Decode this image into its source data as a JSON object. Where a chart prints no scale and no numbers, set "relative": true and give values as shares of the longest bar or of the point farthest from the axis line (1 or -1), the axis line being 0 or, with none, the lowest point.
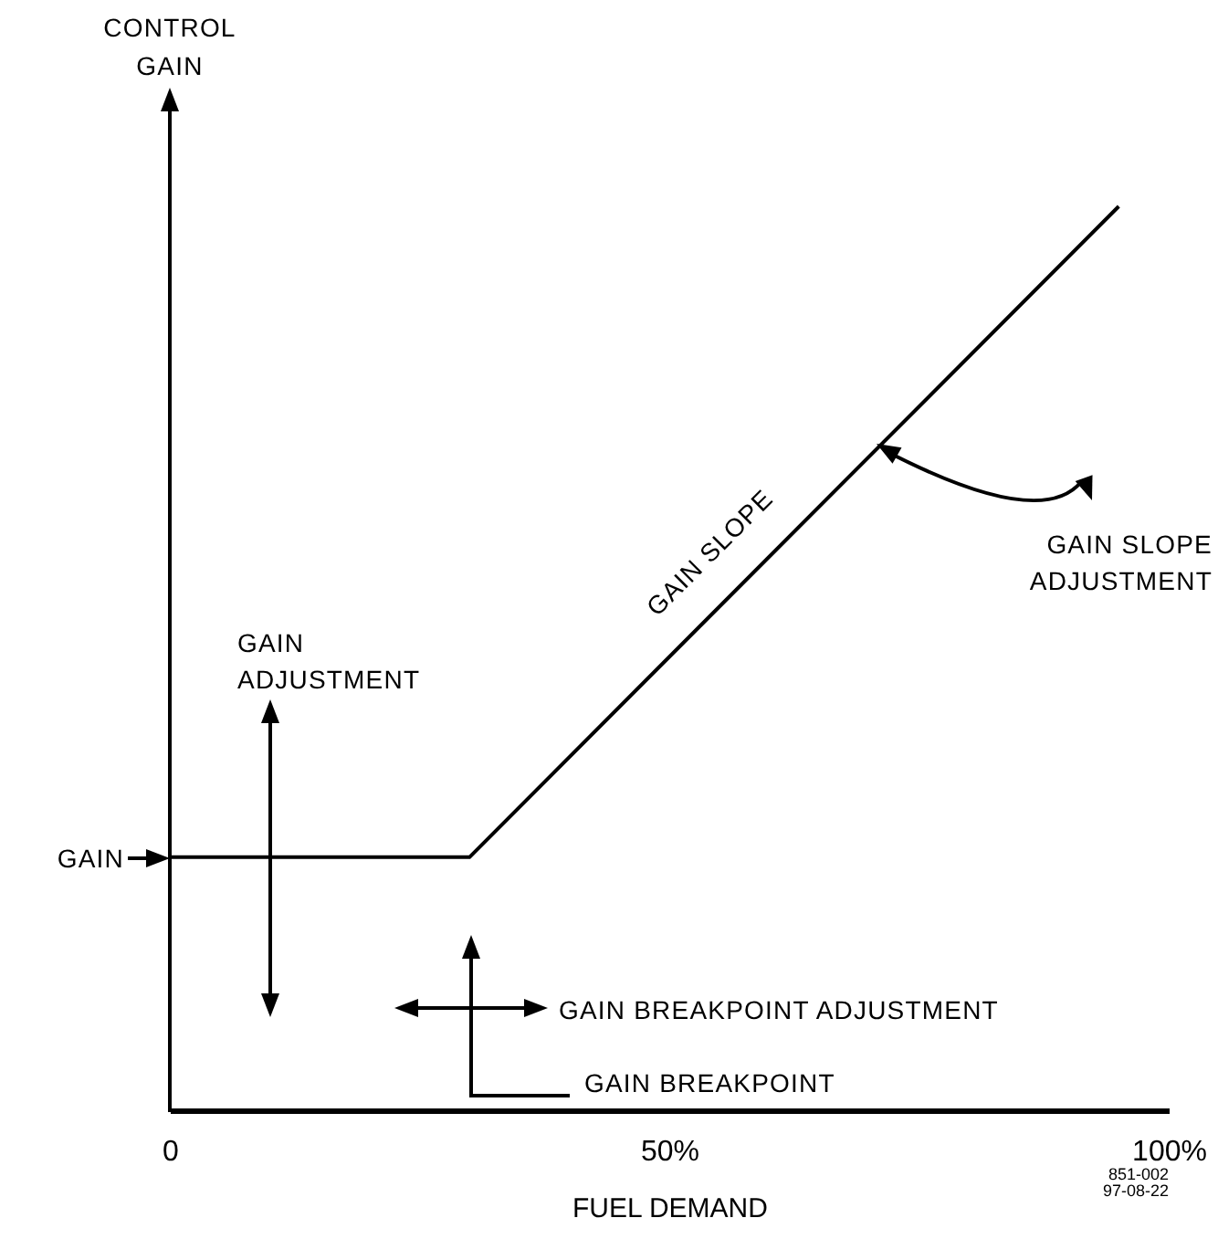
{
  "chart_data": {
    "type": "line",
    "relative": true,
    "xlabel": "FUEL DEMAND",
    "ylabel": "CONTROL GAIN",
    "x": [
      0,
      30,
      95
    ],
    "series": [
      {
        "color": "#000000",
        "values": [
          0.28,
          0.28,
          1
        ]
      }
    ],
    "xlim": [
      0,
      100
    ],
    "xticks": [
      {
        "value": 0,
        "label": "0"
      },
      {
        "value": 50,
        "label": "50%"
      },
      {
        "value": 100,
        "label": "100%"
      }
    ],
    "annotations": [
      "GAIN",
      "GAIN ADJUSTMENT",
      "GAIN SLOPE",
      "GAIN SLOPE ADJUSTMENT",
      "GAIN BREAKPOINT ADJUSTMENT",
      "GAIN BREAKPOINT",
      "851-002 97-08-22"
    ]
  }
}
